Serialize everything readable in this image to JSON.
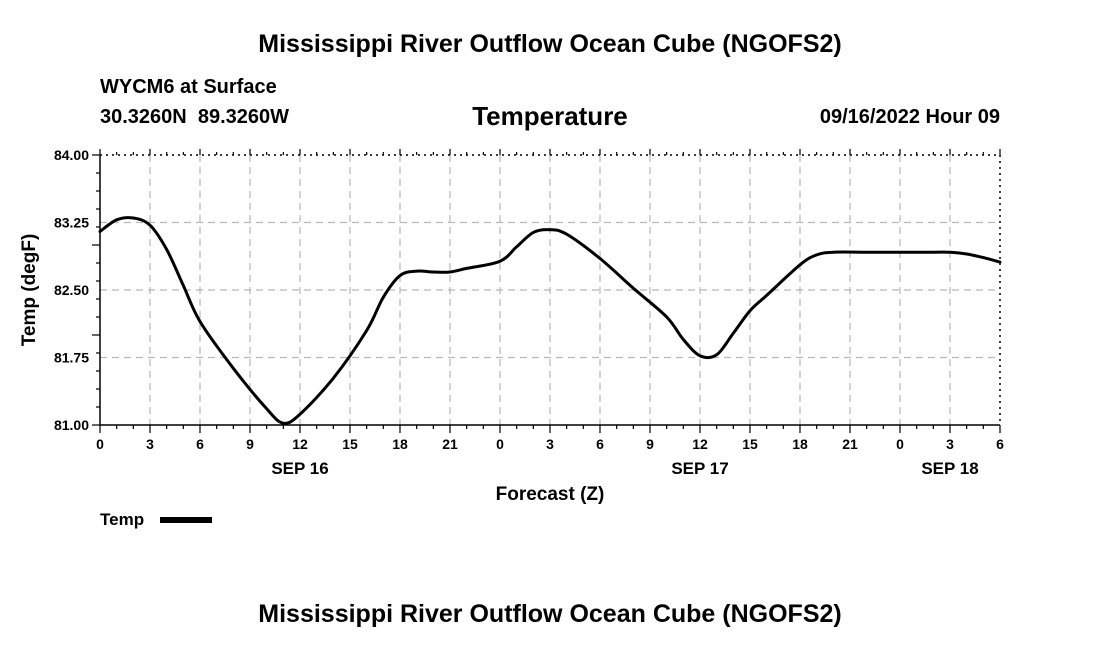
{
  "chart_data": {
    "type": "line",
    "title": "Mississippi River Outflow Ocean Cube (NGOFS2)",
    "station": "WYCM6 at Surface",
    "coordinates": "30.3260N  89.3260W",
    "subtitle": "Temperature",
    "timestamp": "09/16/2022 Hour 09",
    "xlabel": "Forecast (Z)",
    "ylabel": "Temp (degF)",
    "ylim": [
      81.0,
      84.0
    ],
    "yticks": [
      "81.00",
      "81.75",
      "82.50",
      "83.25",
      "84.00"
    ],
    "xlim": [
      0,
      54
    ],
    "xticks": [
      "0",
      "3",
      "6",
      "9",
      "12",
      "15",
      "18",
      "21",
      "0",
      "3",
      "6",
      "9",
      "12",
      "15",
      "18",
      "21",
      "0",
      "3",
      "6"
    ],
    "day_labels": [
      {
        "label": "SEP 16",
        "hour": 12
      },
      {
        "label": "SEP 17",
        "hour": 36
      },
      {
        "label": "SEP 18",
        "hour": 51
      }
    ],
    "grid": true,
    "series": [
      {
        "name": "Temp",
        "color": "#000000",
        "x": [
          0,
          1,
          2,
          3,
          4,
          5,
          6,
          8,
          10,
          11,
          12,
          14,
          16,
          17,
          18,
          19,
          20,
          21,
          22,
          24,
          25,
          26,
          27,
          28,
          30,
          32,
          34,
          35,
          36,
          37,
          38,
          39,
          40,
          42,
          43,
          44,
          46,
          48,
          50,
          51,
          52,
          53,
          54
        ],
        "values": [
          83.15,
          83.28,
          83.3,
          83.22,
          82.95,
          82.55,
          82.15,
          81.63,
          81.18,
          81.02,
          81.12,
          81.52,
          82.05,
          82.42,
          82.66,
          82.71,
          82.7,
          82.7,
          82.74,
          82.82,
          82.98,
          83.14,
          83.17,
          83.12,
          82.85,
          82.52,
          82.2,
          81.95,
          81.77,
          81.78,
          82.02,
          82.27,
          82.44,
          82.78,
          82.89,
          82.92,
          82.92,
          82.92,
          82.92,
          82.92,
          82.9,
          82.86,
          82.81
        ]
      }
    ],
    "legend": {
      "label": "Temp",
      "position": "bottom-left"
    },
    "footer_title": "Mississippi River Outflow Ocean Cube (NGOFS2)"
  }
}
